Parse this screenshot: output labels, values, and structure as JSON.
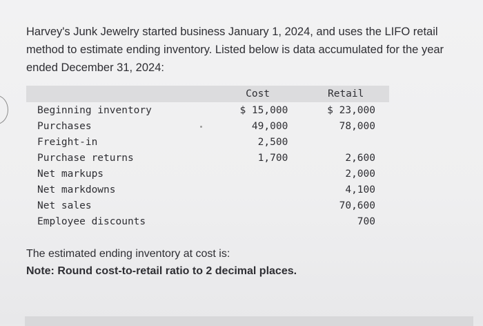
{
  "intro_text": "Harvey's Junk Jewelry started business January 1, 2024, and uses the LIFO retail method to estimate ending inventory. Listed below is data accumulated for the year ended December 31, 2024:",
  "table": {
    "headers": {
      "cost": "Cost",
      "retail": "Retail"
    },
    "rows": [
      {
        "label": "Beginning inventory",
        "cost": "$ 15,000",
        "retail": "$ 23,000"
      },
      {
        "label": "Purchases",
        "cost": "49,000",
        "retail": "78,000"
      },
      {
        "label": "Freight-in",
        "cost": "2,500",
        "retail": ""
      },
      {
        "label": "Purchase returns",
        "cost": "1,700",
        "retail": "2,600"
      },
      {
        "label": "Net markups",
        "cost": "",
        "retail": "2,000"
      },
      {
        "label": "Net markdowns",
        "cost": "",
        "retail": "4,100"
      },
      {
        "label": "Net sales",
        "cost": "",
        "retail": "70,600"
      },
      {
        "label": "Employee discounts",
        "cost": "",
        "retail": "700"
      }
    ]
  },
  "question_text": "The estimated ending inventory at cost is:",
  "note_text": "Note: Round cost-to-retail ratio to 2 decimal places."
}
